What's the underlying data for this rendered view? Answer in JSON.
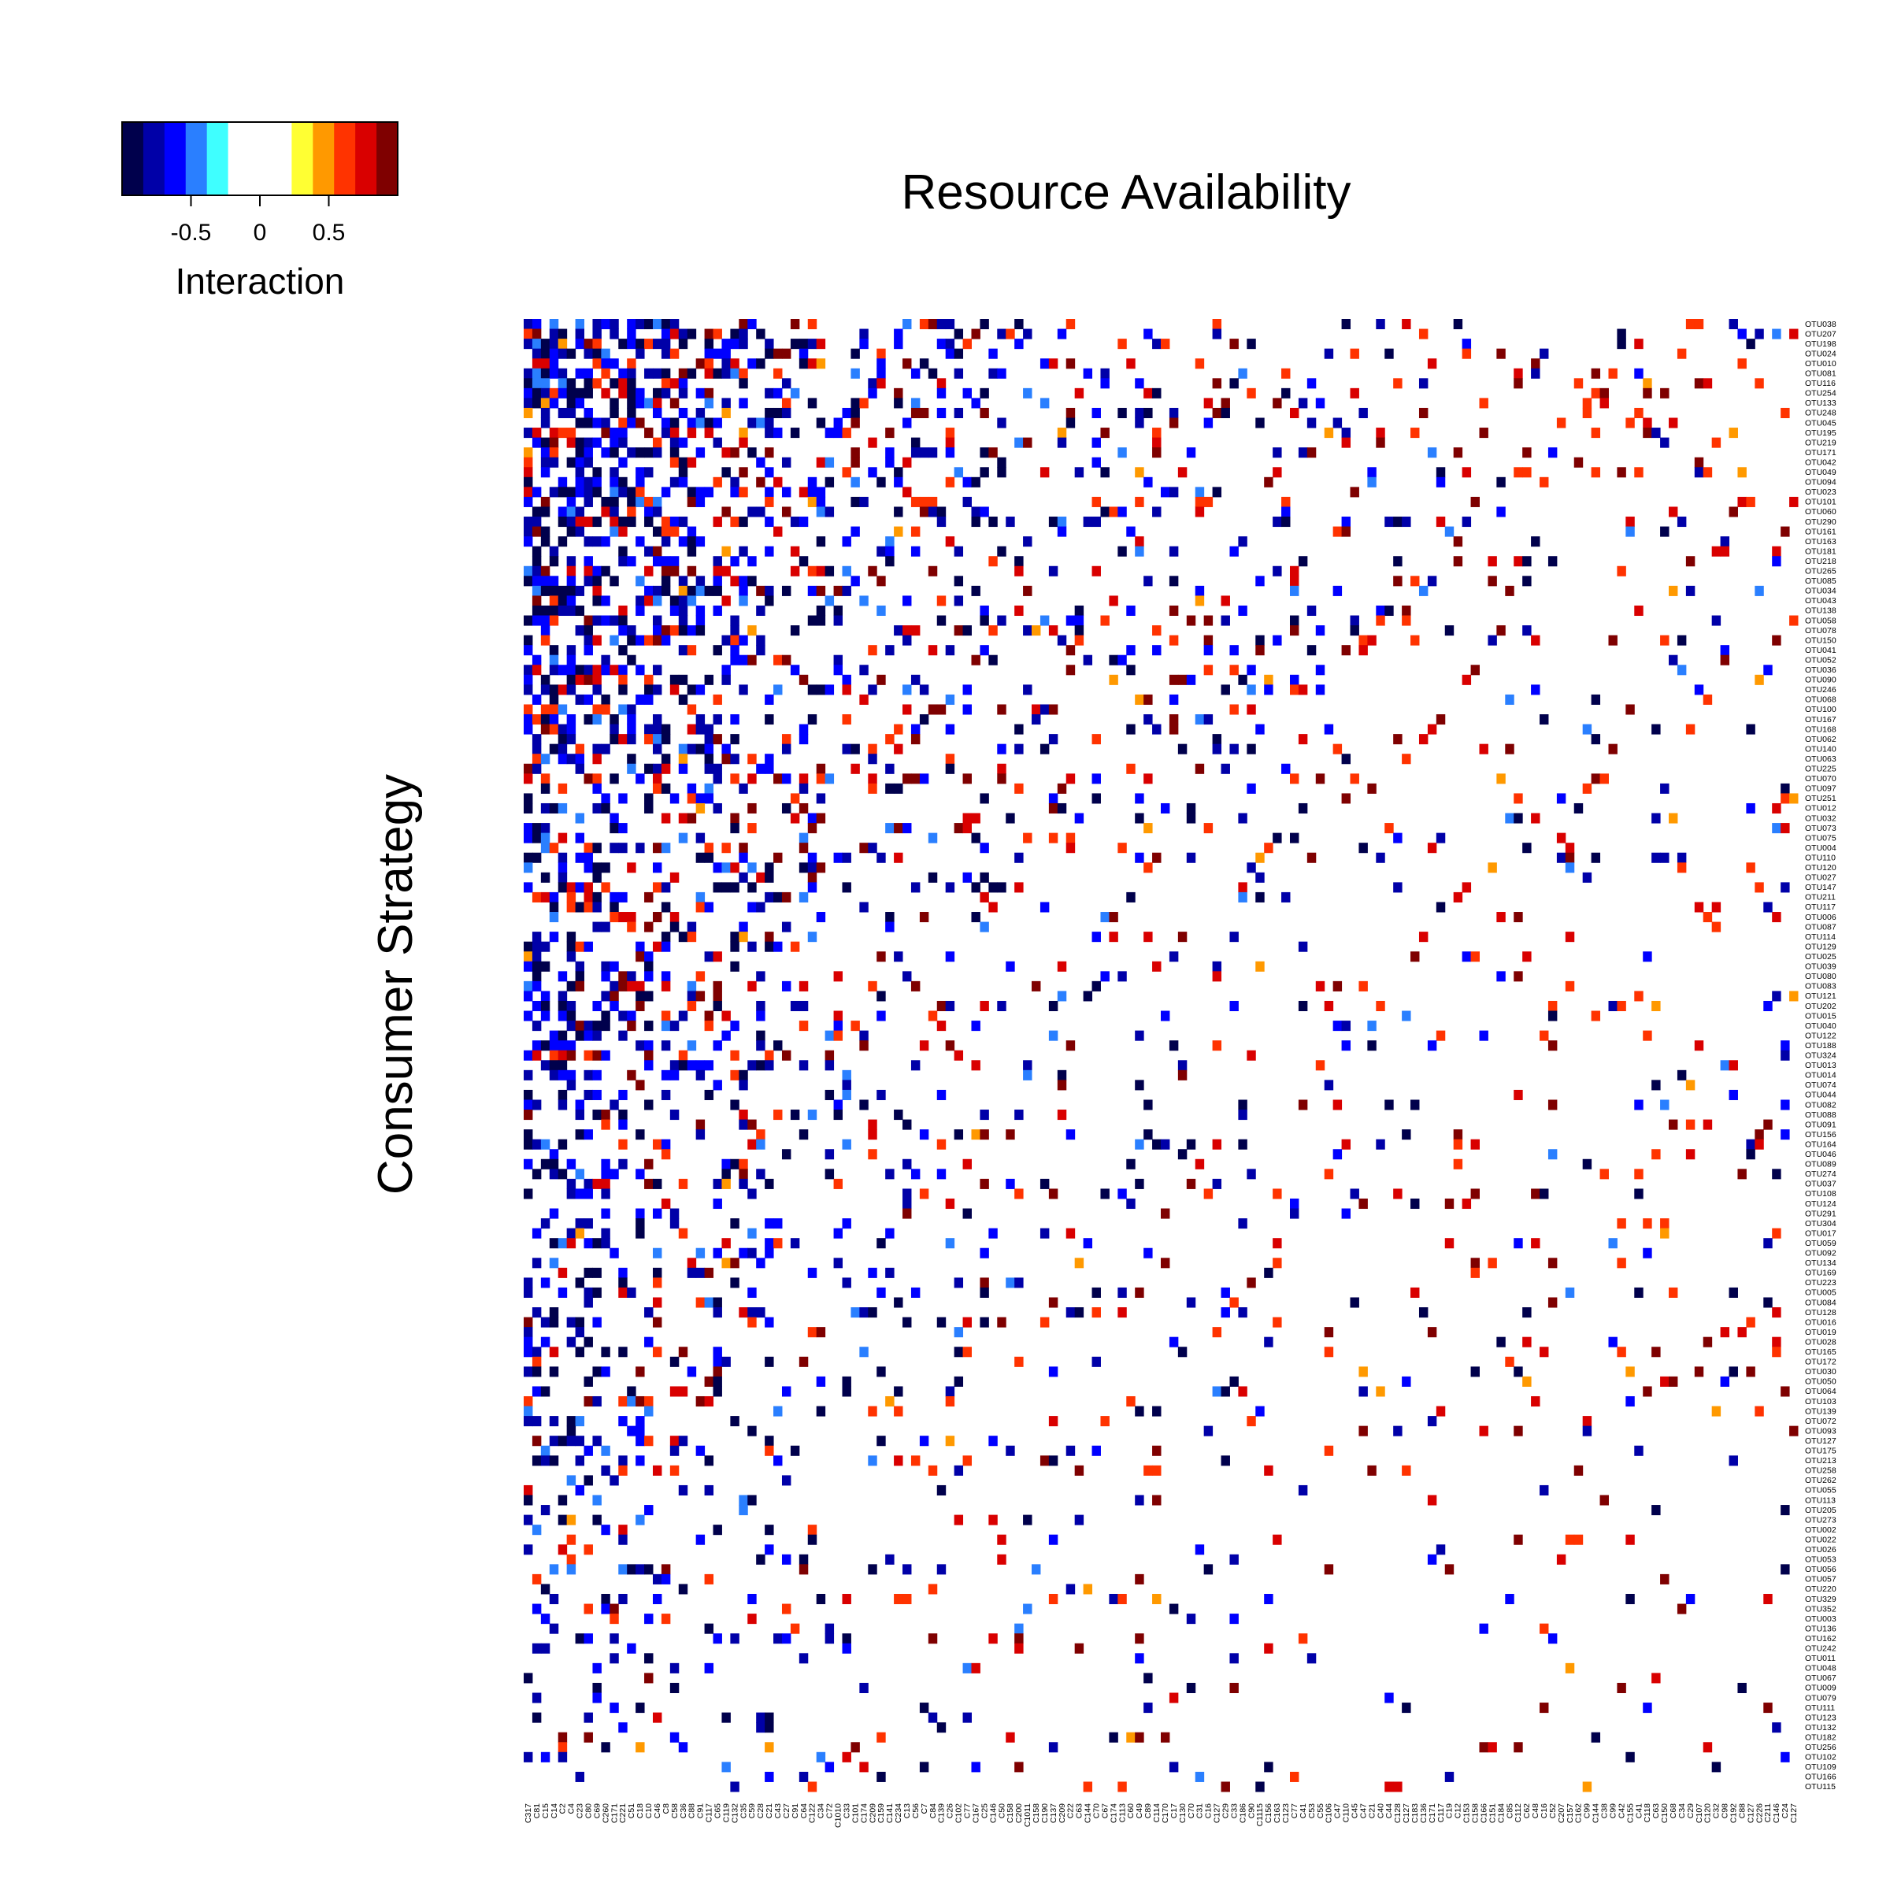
{
  "chart_data": {
    "type": "heatmap",
    "title": "Resource Availability",
    "ylabel": "Consumer Strategy",
    "legend": {
      "title": "Interaction",
      "ticks": [
        -0.5,
        0,
        0.5
      ],
      "tick_labels": [
        "-0.5",
        "0",
        "0.5"
      ],
      "range": [
        -1,
        1
      ],
      "placement": "top-left",
      "colors": [
        "#00004C",
        "#0000A8",
        "#0000FF",
        "#2A7FFF",
        "#3FFFFF",
        "#FFFFFF",
        "#FFFFFF",
        "#FFFFFF",
        "#FFFF33",
        "#FF9900",
        "#FF3300",
        "#D90000",
        "#7F0000"
      ]
    },
    "rows": [
      "OTU038",
      "OTU207",
      "OTU198",
      "OTU024",
      "OTU010",
      "OTU081",
      "OTU116",
      "OTU254",
      "OTU133",
      "OTU248",
      "OTU045",
      "OTU195",
      "OTU219",
      "OTU171",
      "OTU042",
      "OTU049",
      "OTU094",
      "OTU023",
      "OTU101",
      "OTU060",
      "OTU290",
      "OTU161",
      "OTU163",
      "OTU181",
      "OTU218",
      "OTU265",
      "OTU085",
      "OTU034",
      "OTU043",
      "OTU138",
      "OTU058",
      "OTU078",
      "OTU150",
      "OTU041",
      "OTU052",
      "OTU036",
      "OTU090",
      "OTU246",
      "OTU068",
      "OTU100",
      "OTU167",
      "OTU168",
      "OTU062",
      "OTU140",
      "OTU063",
      "OTU225",
      "OTU070",
      "OTU097",
      "OTU251",
      "OTU012",
      "OTU032",
      "OTU073",
      "OTU075",
      "OTU004",
      "OTU110",
      "OTU120",
      "OTU027",
      "OTU147",
      "OTU211",
      "OTU117",
      "OTU006",
      "OTU087",
      "OTU114",
      "OTU129",
      "OTU025",
      "OTU039",
      "OTU080",
      "OTU083",
      "OTU121",
      "OTU202",
      "OTU015",
      "OTU040",
      "OTU122",
      "OTU188",
      "OTU324",
      "OTU013",
      "OTU014",
      "OTU074",
      "OTU044",
      "OTU082",
      "OTU088",
      "OTU091",
      "OTU156",
      "OTU164",
      "OTU046",
      "OTU089",
      "OTU274",
      "OTU037",
      "OTU108",
      "OTU124",
      "OTU291",
      "OTU304",
      "OTU017",
      "OTU059",
      "OTU092",
      "OTU134",
      "OTU169",
      "OTU223",
      "OTU005",
      "OTU084",
      "OTU128",
      "OTU016",
      "OTU019",
      "OTU028",
      "OTU165",
      "OTU172",
      "OTU030",
      "OTU050",
      "OTU064",
      "OTU103",
      "OTU139",
      "OTU072",
      "OTU093",
      "OTU127",
      "OTU175",
      "OTU213",
      "OTU258",
      "OTU262",
      "OTU055",
      "OTU113",
      "OTU205",
      "OTU273",
      "OTU002",
      "OTU022",
      "OTU026",
      "OTU053",
      "OTU056",
      "OTU057",
      "OTU220",
      "OTU329",
      "OTU352",
      "OTU003",
      "OTU136",
      "OTU162",
      "OTU242",
      "OTU011",
      "OTU048",
      "OTU067",
      "OTU009",
      "OTU079",
      "OTU111",
      "OTU123",
      "OTU132",
      "OTU182",
      "OTU256",
      "OTU102",
      "OTU109",
      "OTU166",
      "OTU115"
    ],
    "columns": [
      "C317",
      "C81",
      "C15",
      "C14",
      "C2",
      "C4",
      "C23",
      "C80",
      "C69",
      "C260",
      "C171",
      "C221",
      "C51",
      "C18",
      "C10",
      "C46",
      "C8",
      "C58",
      "C36",
      "C88",
      "C91",
      "C117",
      "C65",
      "C119",
      "C132",
      "C35",
      "C59",
      "C28",
      "C21",
      "C43",
      "C27",
      "C91",
      "C64",
      "C122",
      "C34",
      "C72",
      "C1010",
      "C33",
      "C101",
      "C174",
      "C209",
      "C159",
      "C141",
      "C234",
      "C13",
      "C56",
      "C7",
      "C84",
      "C139",
      "C26",
      "C102",
      "C77",
      "C167",
      "C25",
      "C146",
      "C50",
      "C158",
      "C200",
      "C1011",
      "C158",
      "C190",
      "C137",
      "C209",
      "C22",
      "C63",
      "C144",
      "C70",
      "C67",
      "C174",
      "C113",
      "C60",
      "C49",
      "C89",
      "C114",
      "C170",
      "C17",
      "C130",
      "C70",
      "C31",
      "C16",
      "C127",
      "C29",
      "C33",
      "C186",
      "C90",
      "C1115",
      "C156",
      "C163",
      "C123",
      "C77",
      "C41",
      "C53",
      "C55",
      "C106",
      "C47",
      "C110",
      "C45",
      "C47",
      "C21",
      "C40",
      "C44",
      "C128",
      "C127",
      "C183",
      "C136",
      "C171",
      "C117",
      "C19",
      "C12",
      "C153",
      "C158",
      "C166",
      "C151",
      "C184",
      "C85",
      "C112",
      "C62",
      "C48",
      "C16",
      "C52",
      "C207",
      "C157",
      "C162",
      "C99",
      "C144",
      "C38",
      "C99",
      "C42",
      "C155",
      "C41",
      "C118",
      "C63",
      "C150",
      "C68",
      "C34",
      "C29",
      "C107",
      "C120",
      "C32",
      "C98",
      "C192",
      "C88",
      "C127",
      "C226",
      "C211",
      "C146",
      "C24",
      "C127"
    ],
    "cells": []
  }
}
